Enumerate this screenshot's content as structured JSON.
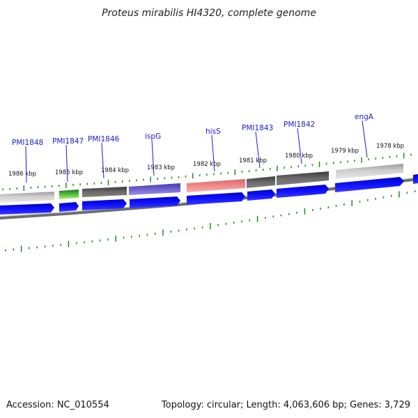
{
  "title": "Proteus mirabilis HI4320, complete genome",
  "footer": {
    "accession": "Accession: NC_010554",
    "summary": "Topology: circular; Length: 4,063,606 bp; Genes: 3,729"
  },
  "colors": {
    "cds_blue": "#0000ee",
    "backbone": "#8c8c8c",
    "tick": "#228b22",
    "gene_label": "#1a1acc",
    "feature_light_gray": "#bdbdbd",
    "feature_dark_gray": "#5c5c5c",
    "feature_green": "#2e9e2e",
    "feature_purple": "#6a5acd",
    "feature_pink": "#f08080"
  },
  "scale_labels": [
    "1986 kbp",
    "1985 kbp",
    "1984 kbp",
    "1983 kbp",
    "1982 kbp",
    "1981 kbp",
    "1980 kbp",
    "1979 kbp",
    "1978 kbp"
  ],
  "genes": [
    {
      "label": "PMI1848",
      "color": "light_gray"
    },
    {
      "label": "PMI1847",
      "color": "green"
    },
    {
      "label": "PMI1846",
      "color": "dark_gray"
    },
    {
      "label": "ispG",
      "color": "purple"
    },
    {
      "label": "hisS",
      "color": "pink"
    },
    {
      "label": "PMI1843",
      "color": "dark_gray"
    },
    {
      "label": "PMI1842",
      "color": "dark_gray"
    },
    {
      "label": "engA",
      "color": "light_gray"
    }
  ]
}
